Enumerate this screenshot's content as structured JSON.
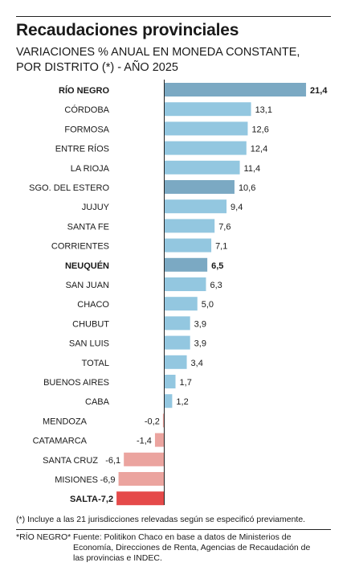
{
  "chart_data": {
    "type": "bar",
    "orientation": "horizontal",
    "title": "Recaudaciones provinciales",
    "subtitle_line1": "VARIACIONES % ANUAL EN MONEDA CONSTANTE,",
    "subtitle_line2": "POR DISTRITO (*) - AÑO 2025",
    "categories": [
      "RÍO NEGRO",
      "CÓRDOBA",
      "FORMOSA",
      "ENTRE RÍOS",
      "LA RIOJA",
      "SGO. DEL ESTERO",
      "JUJUY",
      "SANTA FE",
      "CORRIENTES",
      "NEUQUÉN",
      "SAN JUAN",
      "CHACO",
      "CHUBUT",
      "SAN LUIS",
      "TOTAL",
      "BUENOS AIRES",
      "CABA",
      "MENDOZA",
      "CATAMARCA",
      "SANTA CRUZ",
      "MISIONES",
      "SALTA"
    ],
    "values": [
      21.4,
      13.1,
      12.6,
      12.4,
      11.4,
      10.6,
      9.4,
      7.6,
      7.1,
      6.5,
      6.3,
      5.0,
      3.9,
      3.9,
      3.4,
      1.7,
      1.2,
      -0.2,
      -1.4,
      -6.1,
      -6.9,
      -7.2
    ],
    "value_labels": [
      "21,4",
      "13,1",
      "12,6",
      "12,4",
      "11,4",
      "10,6",
      "9,4",
      "7,6",
      "7,1",
      "6,5",
      "6,3",
      "5,0",
      "3,9",
      "3,9",
      "3,4",
      "1,7",
      "1,2",
      "-0,2",
      "-1,4",
      "-6,1",
      "-6,9",
      "-7,2"
    ],
    "highlighted": [
      "RÍO NEGRO",
      "NEUQUÉN",
      "SALTA"
    ],
    "xlim": [
      -7.2,
      21.4
    ],
    "colors": {
      "positive": "#93c7e0",
      "positive_highlight": "#7ba9c3",
      "negative": "#eba49f",
      "negative_highlight": "#e54a4a",
      "axis": "#222222"
    }
  },
  "footnote": "(*) Incluye a las 21 jurisdicciones relevadas según se especificó previamente.",
  "credit": "*RÍO NEGRO*",
  "source": "Fuente: Politikon Chaco en base a datos de Ministerios de Economía, Direcciones de Renta, Agencias de Recaudación de las provincias e INDEC."
}
